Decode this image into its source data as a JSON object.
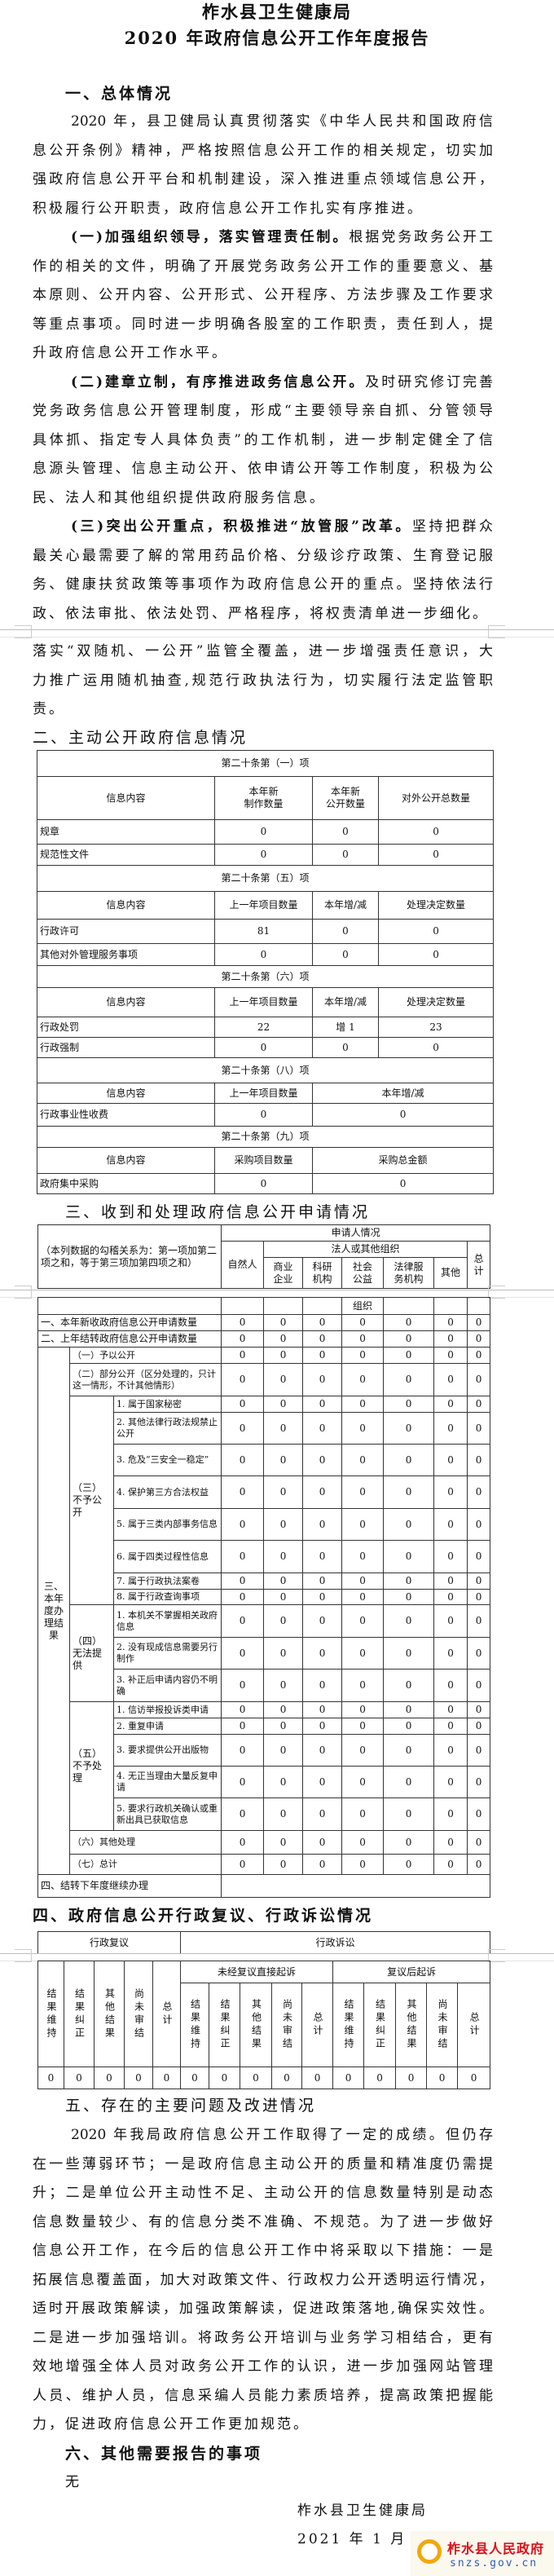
{
  "title": {
    "line1": "柞水县卫生健康局",
    "line2": "2020 年政府信息公开工作年度报告"
  },
  "s1": {
    "heading": "一、总体情况",
    "paragraphs": [
      {
        "lead": "",
        "lines": [
          "2020 年，县卫健局认真贯彻落实《中华人民共和国政府信",
          "息公开条例》精神，严格按照信息公开工作的相关规定，切实加",
          "强政府信息公开平台和机制建设，深入推进重点领域信息公开，",
          "积极履行公开职责，政府信息公开工作扎实有序推进。"
        ]
      },
      {
        "lead": "(一)加强组织领导，落实管理责任制。",
        "lines": [
          "根据党务政务公开工",
          "作的相关的文件，明确了开展党务政务公开工作的重要意义、基",
          "本原则、公开内容、公开形式、公开程序、方法步骤及工作要求",
          "等重点事项。同时进一步明确各股室的工作职责，责任到人，提",
          "升政府信息公开工作水平。"
        ]
      },
      {
        "lead": "(二)建章立制，有序推进政务信息公开。",
        "lines": [
          "及时研究修订完善",
          "党务政务信息公开管理制度，形成“主要领导亲自抓、分管领导",
          "具体抓、指定专人具体负责”的工作机制，进一步制定健全了信",
          "息源头管理、信息主动公开、依申请公开等工作制度，积极为公",
          "民、法人和其他组织提供政府服务信息。"
        ]
      },
      {
        "lead": "(三)突出公开重点，积极推进“放管服”改革。",
        "lines": [
          "坚持把群众",
          "最关心最需要了解的常用药品价格、分级诊疗政策、生育登记服",
          "务、健康扶贫政策等事项作为政府信息公开的重点。坚持依法行",
          "政、依法审批、依法处罚、严格程序，将权责清单进一步细化。"
        ]
      }
    ],
    "continued_lines": [
      "落实“双随机、一公开”监管全覆盖，进一步增强责任意识，大",
      "力推广运用随机抽查,规范行政执法行为，切实履行法定监管职",
      "责。"
    ]
  },
  "s2": {
    "heading": "二、主动公开政府信息情况",
    "blocks": [
      {
        "title": "第二十条第（一）项",
        "headers": [
          "信息内容",
          "本年新\n制作数量",
          "本年新\n公开数量",
          "对外公开总数量"
        ],
        "rows": [
          [
            "规章",
            "0",
            "0",
            "0"
          ],
          [
            "规范性文件",
            "0",
            "0",
            "0"
          ]
        ]
      },
      {
        "title": "第二十条第（五）项",
        "headers": [
          "信息内容",
          "上一年项目数量",
          "本年增/减",
          "处理决定数量"
        ],
        "rows": [
          [
            "行政许可",
            "81",
            "0",
            "0"
          ],
          [
            "其他对外管理服务事项",
            "0",
            "0",
            "0"
          ]
        ]
      },
      {
        "title": "第二十条第（六）项",
        "headers": [
          "信息内容",
          "上一年项目数量",
          "本年增/减",
          "处理决定数量"
        ],
        "rows": [
          [
            "行政处罚",
            "22",
            "增 1",
            "23"
          ],
          [
            "行政强制",
            "0",
            "0",
            "0"
          ]
        ]
      },
      {
        "title": "第二十条第（八）项",
        "headers": [
          "信息内容",
          "上一年项目数量",
          "本年增/减"
        ],
        "rows": [
          [
            "行政事业性收费",
            "0",
            "0"
          ]
        ]
      },
      {
        "title": "第二十条第（九）项",
        "headers": [
          "信息内容",
          "采购项目数量",
          "采购总金额"
        ],
        "rows": [
          [
            "政府集中采购",
            "0",
            "0"
          ]
        ]
      }
    ]
  },
  "s3": {
    "heading": "三、收到和处理政府信息公开申请情况",
    "note": "（本列数据的勾稽关系为：第一项加第二项之和，等于第三项加第四项之和）",
    "applicant": "申请人情况",
    "natural": "自然人",
    "legal": "法人或其他组织",
    "subs": [
      "商业\n企业",
      "科研\n机构",
      "社会\n公益",
      "法律服\n务机构",
      "其他"
    ],
    "subs_overflow": "组织",
    "total": "总计",
    "new_apps": {
      "label": "一、本年新收政府信息公开申请数量",
      "values": [
        "0",
        "0",
        "0",
        "0",
        "0",
        "0",
        "0"
      ]
    },
    "carried": {
      "label": "二、上年结转政府信息公开申请数量",
      "values": [
        "0",
        "0",
        "0",
        "0",
        "0",
        "0",
        "0"
      ]
    },
    "results_label": "三、本年度办理结果",
    "results": [
      {
        "label": "（一）予以公开",
        "values": [
          "0",
          "0",
          "0",
          "0",
          "0",
          "0",
          "0"
        ]
      },
      {
        "label": "（二）部分公开（区分处理的，只计这一情形，不计其他情形）",
        "values": [
          "0",
          "0",
          "0",
          "0",
          "0",
          "0",
          "0"
        ]
      },
      {
        "group": "（三）不予公开",
        "items": [
          {
            "label": "1. 属于国家秘密",
            "values": [
              "0",
              "0",
              "0",
              "0",
              "0",
              "0",
              "0"
            ]
          },
          {
            "label": "2. 其他法律行政法规禁止公开",
            "values": [
              "0",
              "0",
              "0",
              "0",
              "0",
              "0",
              "0"
            ]
          },
          {
            "label": "3. 危及“三安全一稳定”",
            "values": [
              "0",
              "0",
              "0",
              "0",
              "0",
              "0",
              "0"
            ]
          },
          {
            "label": "4. 保护第三方合法权益",
            "values": [
              "0",
              "0",
              "0",
              "0",
              "0",
              "0",
              "0"
            ]
          },
          {
            "label": "5. 属于三类内部事务信息",
            "values": [
              "0",
              "0",
              "0",
              "0",
              "0",
              "0",
              "0"
            ]
          },
          {
            "label": "6. 属于四类过程性信息",
            "values": [
              "0",
              "0",
              "0",
              "0",
              "0",
              "0",
              "0"
            ]
          },
          {
            "label": "7. 属于行政执法案卷",
            "values": [
              "0",
              "0",
              "0",
              "0",
              "0",
              "0",
              "0"
            ]
          },
          {
            "label": "8. 属于行政查询事项",
            "values": [
              "0",
              "0",
              "0",
              "0",
              "0",
              "0",
              "0"
            ]
          }
        ]
      },
      {
        "group": "（四）无法提供",
        "items": [
          {
            "label": "1. 本机关不掌握相关政府信息",
            "values": [
              "0",
              "0",
              "0",
              "0",
              "0",
              "0",
              "0"
            ]
          },
          {
            "label": "2. 没有现成信息需要另行制作",
            "values": [
              "0",
              "0",
              "0",
              "0",
              "0",
              "0",
              "0"
            ]
          },
          {
            "label": "3. 补正后申请内容仍不明确",
            "values": [
              "0",
              "0",
              "0",
              "0",
              "0",
              "0",
              "0"
            ]
          }
        ]
      },
      {
        "group": "（五）不予处理",
        "items": [
          {
            "label": "1. 信访举报投诉类申请",
            "values": [
              "0",
              "0",
              "0",
              "0",
              "0",
              "0",
              "0"
            ]
          },
          {
            "label": "2. 重复申请",
            "values": [
              "0",
              "0",
              "0",
              "0",
              "0",
              "0",
              "0"
            ]
          },
          {
            "label": "3. 要求提供公开出版物",
            "values": [
              "0",
              "0",
              "0",
              "0",
              "0",
              "0",
              "0"
            ]
          },
          {
            "label": "4. 无正当理由大量反复申请",
            "values": [
              "0",
              "0",
              "0",
              "0",
              "0",
              "0",
              "0"
            ]
          },
          {
            "label": "5. 要求行政机关确认或重新出具已获取信息",
            "values": [
              "0",
              "0",
              "0",
              "0",
              "0",
              "0",
              "0"
            ]
          }
        ]
      },
      {
        "label": "（六）其他处理",
        "values": [
          "0",
          "0",
          "0",
          "0",
          "0",
          "0",
          "0"
        ]
      },
      {
        "label": "（七）总计",
        "values": [
          "0",
          "0",
          "0",
          "0",
          "0",
          "0",
          "0"
        ]
      }
    ],
    "carry_next": {
      "label": "四、结转下年度继续办理",
      "value": ""
    }
  },
  "s4": {
    "heading": "四、政府信息公开行政复议、行政诉讼情况",
    "review": "行政复议",
    "litigation": "行政诉讼",
    "direct": "未经复议直接起诉",
    "after_review": "复议后起诉",
    "cols": [
      "结果维持",
      "结果纠正",
      "其他结果",
      "尚未审结",
      "总计"
    ],
    "values": [
      "0",
      "0",
      "0",
      "0",
      "0",
      "0",
      "0",
      "0",
      "0",
      "0",
      "0",
      "0",
      "0",
      "0",
      "0"
    ]
  },
  "s5": {
    "heading": "五、存在的主要问题及改进情况",
    "lines": [
      "2020 年我局政府信息公开工作取得了一定的成绩。但仍存",
      "在一些薄弱环节；一是政府信息主动公开的质量和精准度仍需提",
      "升；二是单位公开主动性不足、主动公开的信息数量特别是动态",
      "信息数量较少、有的信息分类不准确、不规范。为了进一步做好",
      "信息公开工作，在今后的信息公开工作中将采取以下措施：一是",
      "拓展信息覆盖面，加大对政策文件、行政权力公开透明运行情况，",
      "适时开展政策解读，加强政策解读，促进政策落地,确保实效性。",
      "二是进一步加强培训。将政务公开培训与业务学习相结合，更有",
      "效地增强全体人员对政务公开工作的认识，进一步加强网站管理",
      "人员、维护人员，信息采编人员能力素质培养，提高政策把握能",
      "力，促进政府信息公开工作更加规范。"
    ]
  },
  "s6": {
    "heading": "六、其他需要报告的事项",
    "body": "无"
  },
  "signature": {
    "org": "柞水县卫生健康局",
    "date": "2021 年 1 月 19 日"
  },
  "watermark": {
    "name": "柞水县人民政府",
    "url": "snzs.gov.cn",
    "icon": "sun-logo-icon",
    "name_color": "#d8121b",
    "url_color": "#2c5db5"
  }
}
